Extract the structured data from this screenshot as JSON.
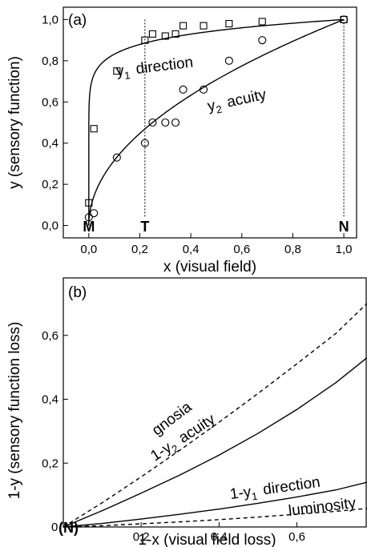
{
  "chart_data": [
    {
      "type": "scatter",
      "panel_label": "(a)",
      "xlabel": "x (visual field)",
      "ylabel": "y (sensory function)",
      "xlim": [
        -0.1,
        1.05
      ],
      "ylim": [
        -0.06,
        1.06
      ],
      "x_ticks": [
        0.0,
        0.2,
        0.4,
        0.6,
        0.8,
        1.0
      ],
      "x_tick_labels": [
        "0,0",
        "0,2",
        "0,4",
        "0,6",
        "0,8",
        "1,0"
      ],
      "y_ticks": [
        0.0,
        0.2,
        0.4,
        0.6,
        0.8,
        1.0
      ],
      "y_tick_labels": [
        "0,0",
        "0,2",
        "0,4",
        "0,6",
        "0,8",
        "1,0"
      ],
      "grid": false,
      "series": [
        {
          "marker": "square",
          "points": [
            [
              0.0,
              0.11
            ],
            [
              0.02,
              0.47
            ],
            [
              0.11,
              0.75
            ],
            [
              0.22,
              0.9
            ],
            [
              0.25,
              0.93
            ],
            [
              0.3,
              0.92
            ],
            [
              0.34,
              0.93
            ],
            [
              0.37,
              0.97
            ],
            [
              0.45,
              0.97
            ],
            [
              0.55,
              0.98
            ],
            [
              0.68,
              0.99
            ],
            [
              1.0,
              1.0
            ]
          ]
        },
        {
          "marker": "circle",
          "points": [
            [
              0.0,
              0.04
            ],
            [
              0.02,
              0.06
            ],
            [
              0.11,
              0.33
            ],
            [
              0.22,
              0.4
            ],
            [
              0.25,
              0.5
            ],
            [
              0.3,
              0.5
            ],
            [
              0.34,
              0.5
            ],
            [
              0.37,
              0.66
            ],
            [
              0.45,
              0.66
            ],
            [
              0.55,
              0.8
            ],
            [
              0.68,
              0.9
            ],
            [
              1.0,
              1.0
            ]
          ]
        }
      ],
      "fit_curves": [
        {
          "label_main": "y",
          "label_sub": "1",
          "label_word": "direction",
          "form": "power",
          "exponent": 0.08
        },
        {
          "label_main": "y",
          "label_sub": "2",
          "label_word": "acuity",
          "form": "power",
          "exponent": 0.5
        }
      ],
      "reference_lines": [
        {
          "name": "T",
          "x": 0.22
        },
        {
          "name": "N",
          "x": 1.0
        }
      ],
      "axis_markers": [
        {
          "label": "M",
          "x": 0.0
        },
        {
          "label": "T",
          "x": 0.22
        },
        {
          "label": "N",
          "x": 1.0
        }
      ]
    },
    {
      "type": "line",
      "panel_label": "(b)",
      "xlabel": "1-x (visual field loss)",
      "ylabel": "1-y (sensory function loss)",
      "xlim": [
        0.0,
        0.78
      ],
      "ylim": [
        0.0,
        0.78
      ],
      "x_ticks": [
        0.2,
        0.4,
        0.6
      ],
      "x_tick_labels": [
        "0,2",
        "0,4",
        "0,6"
      ],
      "y_ticks": [
        0.2,
        0.4,
        0.6
      ],
      "y_tick_labels": [
        "0,2",
        "0,4",
        "0,6"
      ],
      "origin_label": "0",
      "origin_marker": "(N)",
      "grid": false,
      "series": [
        {
          "label": "gnosia",
          "style": "dashed",
          "x": [
            0.0,
            0.1,
            0.2,
            0.3,
            0.4,
            0.5,
            0.6,
            0.7,
            0.78
          ],
          "y": [
            0.0,
            0.076,
            0.157,
            0.241,
            0.328,
            0.418,
            0.511,
            0.606,
            0.7
          ]
        },
        {
          "label": "1-y",
          "label_sub": "2",
          "label_word": "acuity",
          "style": "solid",
          "x": [
            0.0,
            0.1,
            0.2,
            0.3,
            0.4,
            0.5,
            0.6,
            0.7,
            0.78
          ],
          "y": [
            0.0,
            0.051,
            0.106,
            0.163,
            0.225,
            0.293,
            0.368,
            0.452,
            0.53
          ]
        },
        {
          "label": "1-y",
          "label_sub": "1",
          "label_word": "direction",
          "style": "solid",
          "x": [
            0.0,
            0.1,
            0.2,
            0.3,
            0.4,
            0.5,
            0.6,
            0.7,
            0.78
          ],
          "y": [
            0.0,
            0.011,
            0.025,
            0.04,
            0.056,
            0.074,
            0.094,
            0.116,
            0.14
          ]
        },
        {
          "label": "luminosity",
          "style": "dashed",
          "x": [
            0.0,
            0.1,
            0.2,
            0.3,
            0.4,
            0.5,
            0.6,
            0.7,
            0.78
          ],
          "y": [
            0.0,
            0.004,
            0.01,
            0.016,
            0.023,
            0.031,
            0.04,
            0.049,
            0.058
          ]
        }
      ]
    }
  ]
}
